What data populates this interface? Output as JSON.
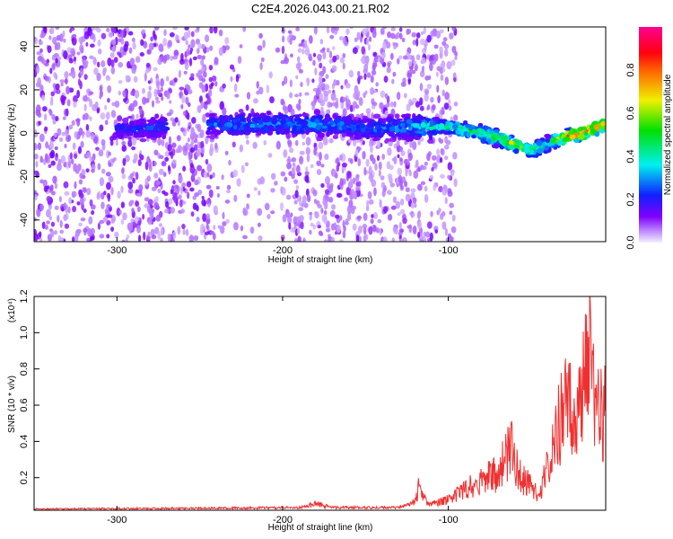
{
  "chart_data": [
    {
      "type": "heatmap",
      "title": "C2E4.2026.043.00.21.R02",
      "xlabel": "Height of straight line (km)",
      "ylabel": "Frequency (Hz)",
      "xlim": [
        -350,
        -5
      ],
      "ylim": [
        -50,
        49
      ],
      "xticks": [
        -300,
        -200,
        -100
      ],
      "yticks": [
        40,
        20,
        0,
        -20,
        -40
      ],
      "colorbar": {
        "label": "Normalized spectral amplitude",
        "range": [
          0,
          1
        ],
        "ticks": [
          "0.0",
          "0.2",
          "0.4",
          "0.6",
          "0.8"
        ]
      },
      "ridge": {
        "x": [
          -350,
          -290,
          -240,
          -200,
          -170,
          -150,
          -120,
          -100,
          -80,
          -60,
          -50,
          -40,
          -30,
          -20,
          -5
        ],
        "freq": [
          1,
          2,
          4,
          4,
          4,
          2,
          3,
          3,
          0,
          -5,
          -8,
          -5,
          -2,
          0,
          4
        ],
        "amplitude": [
          0.12,
          0.22,
          0.28,
          0.3,
          0.3,
          0.25,
          0.35,
          0.45,
          0.5,
          0.65,
          0.5,
          0.45,
          0.7,
          0.85,
          0.8
        ]
      },
      "noise_end_x": -110
    },
    {
      "type": "line",
      "xlabel": "Height of straight line (km)",
      "ylabel": "SNR (10 * v/v)",
      "yscale_label": "(x10⁴)",
      "xlim": [
        -350,
        -5
      ],
      "ylim": [
        0.02,
        1.2
      ],
      "xticks": [
        -300,
        -200,
        -100
      ],
      "yticks": [
        "0.2",
        "0.4",
        "0.6",
        "0.8",
        "1.0",
        "1.2"
      ],
      "color": "#f03030",
      "envelope": {
        "x": [
          -350,
          -250,
          -190,
          -180,
          -170,
          -130,
          -120,
          -118,
          -112,
          -100,
          -80,
          -70,
          -62,
          -58,
          -50,
          -45,
          -40,
          -35,
          -30,
          -25,
          -20,
          -15,
          -12,
          -8,
          -5
        ],
        "y": [
          0.03,
          0.035,
          0.04,
          0.07,
          0.04,
          0.04,
          0.08,
          0.19,
          0.06,
          0.1,
          0.25,
          0.3,
          0.5,
          0.3,
          0.2,
          0.12,
          0.4,
          0.6,
          0.8,
          0.75,
          0.85,
          1.2,
          0.9,
          0.75,
          0.8
        ]
      }
    }
  ]
}
